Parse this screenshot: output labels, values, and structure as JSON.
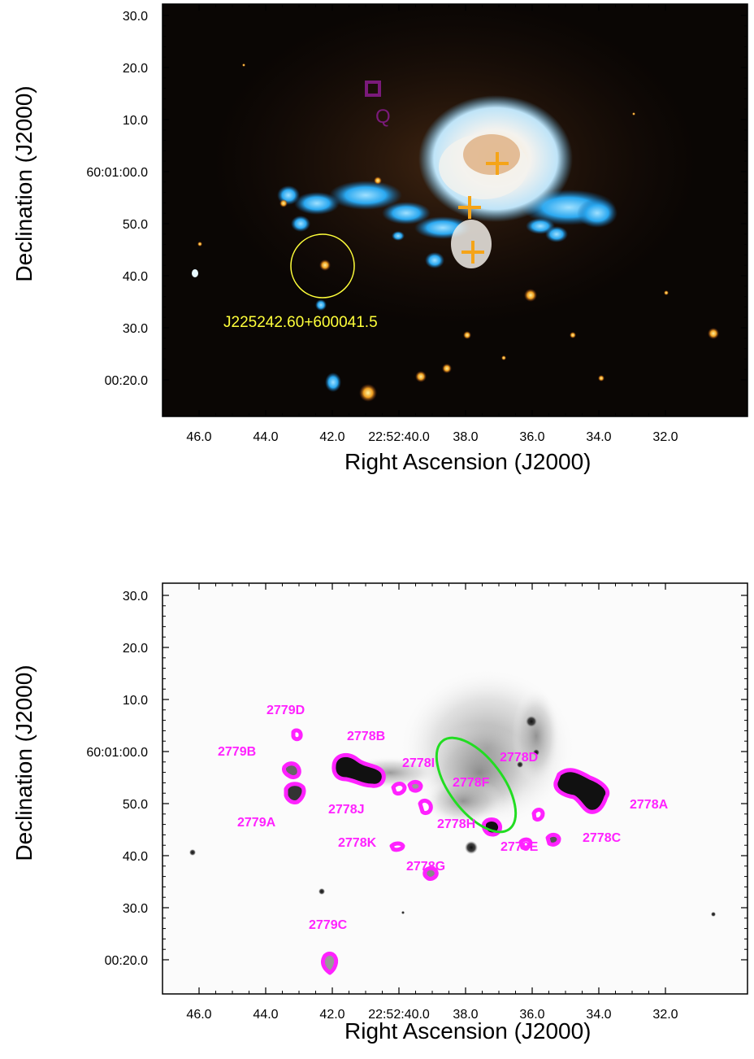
{
  "top_panel": {
    "xlabel": "Right Ascension (J2000)",
    "ylabel": "Declination (J2000)",
    "x_ticks": [
      "46.0",
      "44.0",
      "42.0",
      "22:52:40.0",
      "38.0",
      "36.0",
      "34.0",
      "32.0"
    ],
    "y_ticks": [
      "30.0",
      "20.0",
      "10.0",
      "60:01:00.0",
      "50.0",
      "40.0",
      "30.0",
      "00:20.0"
    ],
    "circle_label": "J225242.60+600041.5",
    "square_label": "Q",
    "colors": {
      "background": "#0a0604",
      "nebula_core": "#f4f2ee",
      "nebula_blue": "#2aa8f0",
      "cross": "#f5a418",
      "circle": "#ffff3a",
      "square": "#7a1a7a"
    }
  },
  "bottom_panel": {
    "xlabel": "Right Ascension (J2000)",
    "ylabel": "Declination (J2000)",
    "x_ticks": [
      "46.0",
      "44.0",
      "42.0",
      "22:52:40.0",
      "38.0",
      "36.0",
      "34.0",
      "32.0"
    ],
    "y_ticks": [
      "30.0",
      "20.0",
      "10.0",
      "60:01:00.0",
      "50.0",
      "40.0",
      "30.0",
      "00:20.0"
    ],
    "sources": [
      "2779D",
      "2779B",
      "2779A",
      "2778B",
      "2778J",
      "2778K",
      "2778I",
      "2778F",
      "2778H",
      "2778G",
      "2778D",
      "2778E",
      "2778C",
      "2778A",
      "2779C"
    ],
    "colors": {
      "contour": "#ff22ff",
      "ellipse": "#22dd22"
    }
  }
}
